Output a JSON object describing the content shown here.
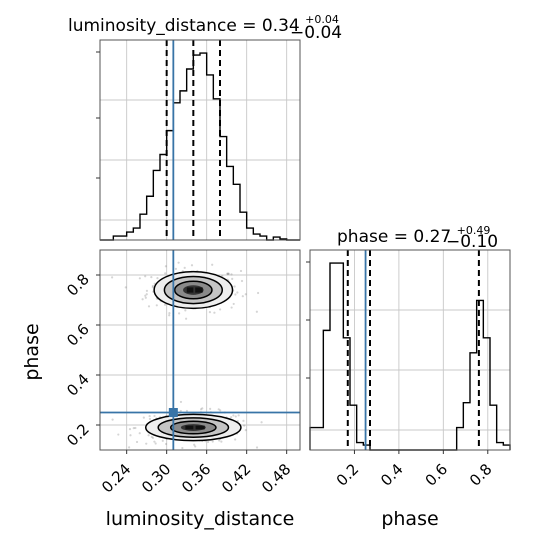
{
  "chart_data": {
    "type": "corner",
    "parameters": [
      "luminosity_distance",
      "phase"
    ],
    "truths": {
      "luminosity_distance": 0.31,
      "phase": 0.25
    },
    "panels": [
      {
        "id": "hist-luminosity_distance",
        "type": "histogram",
        "title": "luminosity_distance = 0.34",
        "title_main": "luminosity_distance = 0.34",
        "title_sup": "+0.04",
        "title_sub": "−0.04",
        "xlim": [
          0.2,
          0.5
        ],
        "bin_edges": [
          0.2,
          0.21,
          0.22,
          0.23,
          0.24,
          0.25,
          0.26,
          0.27,
          0.28,
          0.29,
          0.3,
          0.31,
          0.32,
          0.33,
          0.34,
          0.35,
          0.36,
          0.37,
          0.38,
          0.39,
          0.4,
          0.41,
          0.42,
          0.43,
          0.44,
          0.45,
          0.46,
          0.47,
          0.48,
          0.49,
          0.5
        ],
        "counts": [
          0,
          0,
          4,
          4,
          8,
          12,
          26,
          44,
          70,
          86,
          110,
          138,
          150,
          172,
          186,
          188,
          166,
          142,
          104,
          74,
          56,
          28,
          12,
          6,
          4,
          0,
          3,
          1,
          0,
          0
        ],
        "quantiles": [
          0.3,
          0.34,
          0.38
        ]
      },
      {
        "id": "hist-phase",
        "type": "histogram",
        "title": "phase = 0.27",
        "title_main": "phase = 0.27",
        "title_sup": "+0.49",
        "title_sub": "−0.10",
        "xlim": [
          0.0,
          0.9
        ],
        "bin_edges": [
          0.0,
          0.03,
          0.06,
          0.09,
          0.12,
          0.15,
          0.18,
          0.21,
          0.24,
          0.27,
          0.3,
          0.33,
          0.36,
          0.39,
          0.42,
          0.45,
          0.48,
          0.51,
          0.54,
          0.57,
          0.6,
          0.63,
          0.66,
          0.69,
          0.72,
          0.75,
          0.78,
          0.81,
          0.84,
          0.87,
          0.9
        ],
        "counts": [
          9,
          9,
          48,
          75,
          75,
          45,
          18,
          3,
          2,
          0,
          0,
          0,
          0,
          0,
          0,
          0,
          0,
          0,
          0,
          0,
          0,
          0,
          9,
          19,
          39,
          60,
          45,
          18,
          3,
          2
        ],
        "quantiles": [
          0.17,
          0.27,
          0.76
        ]
      },
      {
        "id": "scatter-phase-vs-luminosity_distance",
        "type": "2d-density",
        "xlim": [
          0.2,
          0.5
        ],
        "ylim": [
          0.1,
          0.9
        ],
        "modes": [
          {
            "x": 0.34,
            "y": 0.74,
            "sx": 0.028,
            "sy": 0.035
          },
          {
            "x": 0.34,
            "y": 0.19,
            "sx": 0.034,
            "sy": 0.025
          }
        ]
      }
    ],
    "axes": {
      "x_left": {
        "label": "luminosity_distance",
        "ticks": [
          "0.24",
          "0.30",
          "0.36",
          "0.42",
          "0.48"
        ]
      },
      "x_right": {
        "label": "phase",
        "ticks": [
          "0.2",
          "0.4",
          "0.6",
          "0.8"
        ]
      },
      "y_left": {
        "label": "phase",
        "ticks": [
          "0.2",
          "0.4",
          "0.6",
          "0.8"
        ]
      }
    },
    "grid": true
  },
  "colors": {
    "truth": "#3874a7",
    "line": "#000000",
    "grid": "#c8c8c8",
    "point": "#888888"
  }
}
